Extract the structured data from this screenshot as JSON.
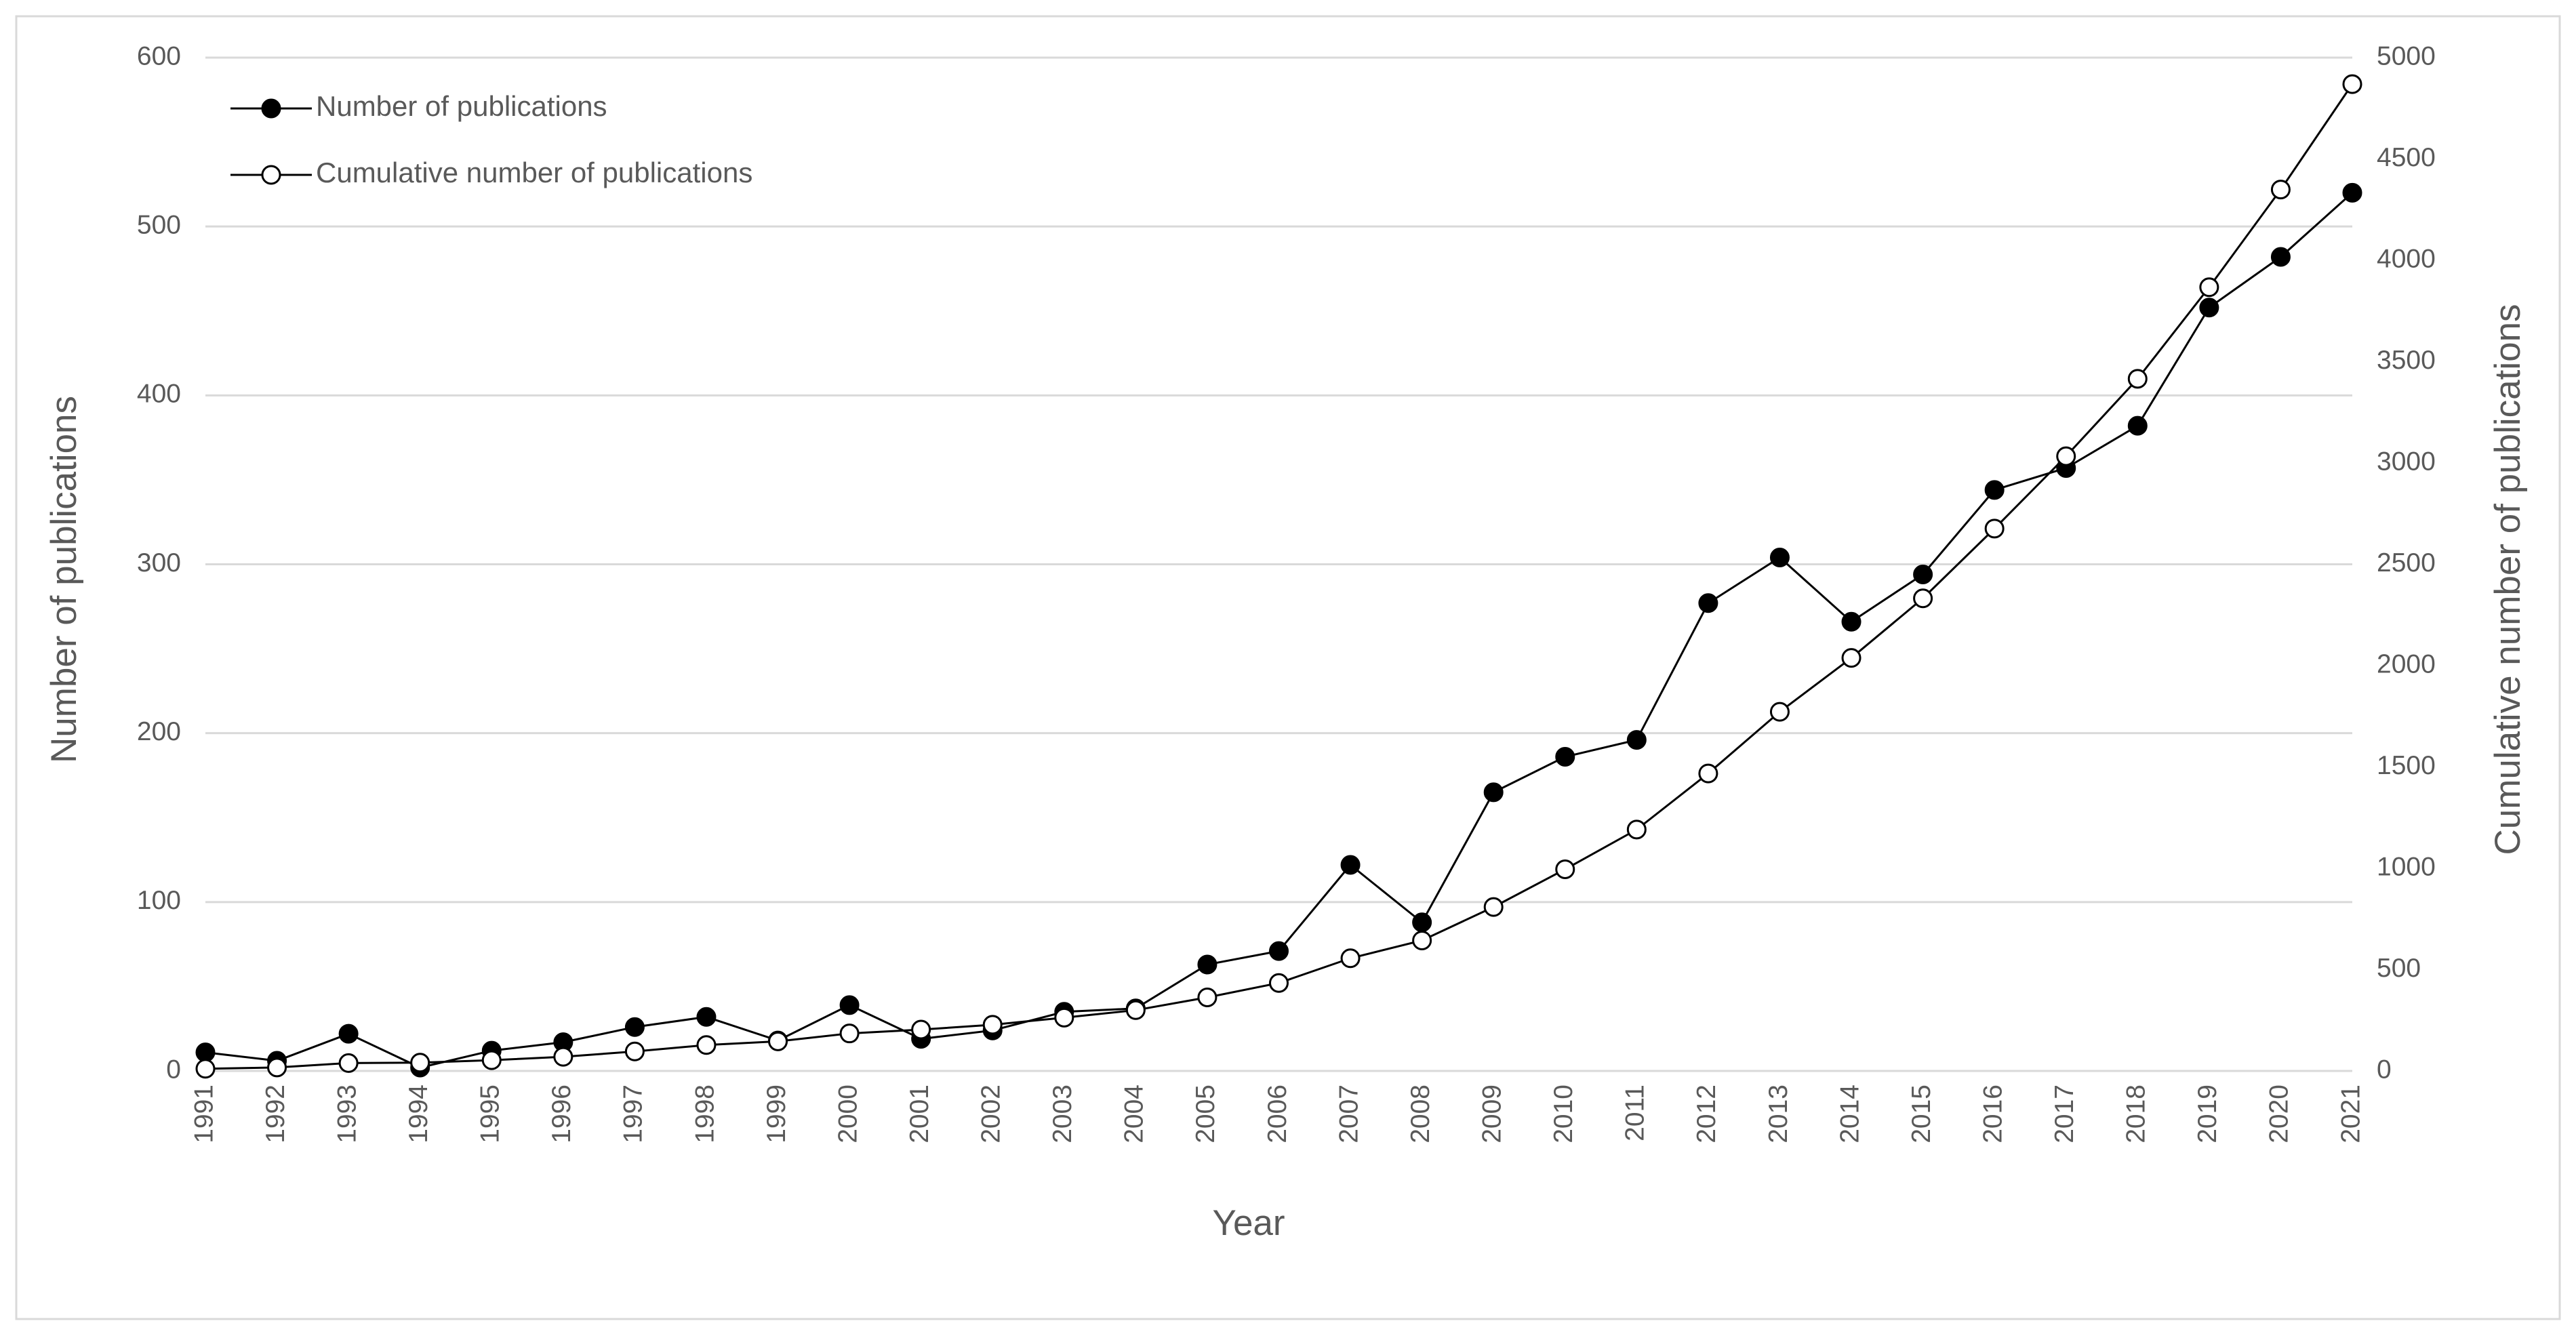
{
  "chart_data": {
    "type": "line",
    "x_label": "Year",
    "y_label": "Number of publications",
    "y2_label": "Cumulative number of publications",
    "categories": [
      "1991",
      "1992",
      "1993",
      "1994",
      "1995",
      "1996",
      "1997",
      "1998",
      "1999",
      "2000",
      "2001",
      "2002",
      "2003",
      "2004",
      "2005",
      "2006",
      "2007",
      "2008",
      "2009",
      "2010",
      "2011",
      "2012",
      "2013",
      "2014",
      "2015",
      "2016",
      "2017",
      "2018",
      "2019",
      "2020",
      "2021"
    ],
    "series": [
      {
        "name": "Number of publications",
        "color": "#000000",
        "marker_fill": "#000000",
        "values": [
          11,
          6,
          22,
          2,
          12,
          17,
          26,
          32,
          18,
          39,
          19,
          24,
          35,
          37,
          63,
          71,
          122,
          88,
          165,
          186,
          196,
          277,
          304,
          266,
          294,
          344,
          357,
          382,
          452,
          482,
          520
        ]
      },
      {
        "name": "Cumulative number of publications",
        "color": "#000000",
        "marker_fill": "#ffffff",
        "axis": "y2",
        "values": [
          11,
          17,
          39,
          41,
          53,
          70,
          96,
          128,
          146,
          185,
          204,
          228,
          263,
          300,
          363,
          434,
          556,
          644,
          809,
          995,
          1191,
          1468,
          1772,
          2038,
          2332,
          2676,
          3033,
          3415,
          3867,
          4349,
          4869
        ]
      }
    ],
    "ylim": [
      0,
      600
    ],
    "yticks": [
      0,
      100,
      200,
      300,
      400,
      500,
      600
    ],
    "y2lim": [
      0,
      5000
    ],
    "y2ticks": [
      0,
      500,
      1000,
      1500,
      2000,
      2500,
      3000,
      3500,
      4000,
      4500,
      5000
    ],
    "grid": true,
    "legend": "upper left"
  }
}
